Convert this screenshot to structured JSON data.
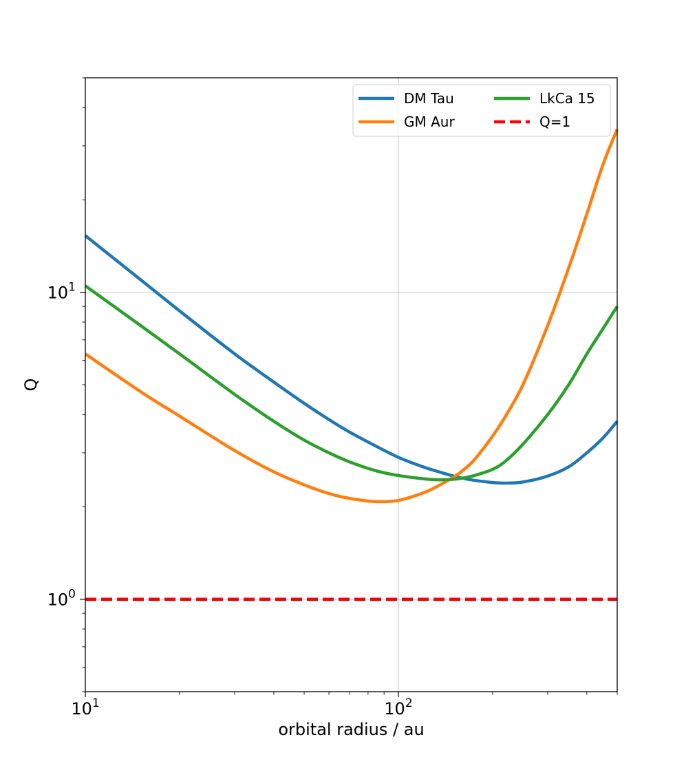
{
  "chart_data": {
    "type": "line",
    "title": "",
    "xlabel": "orbital radius / au",
    "ylabel": "Q",
    "xscale": "log",
    "yscale": "log",
    "xlim": [
      10,
      500
    ],
    "ylim": [
      0.5,
      50
    ],
    "grid": true,
    "legend_position": "top-right",
    "x_major_ticks": [
      {
        "value": 10,
        "base": "10",
        "exp": "1"
      },
      {
        "value": 100,
        "base": "10",
        "exp": "2"
      }
    ],
    "y_major_ticks": [
      {
        "value": 1,
        "base": "10",
        "exp": "0"
      },
      {
        "value": 10,
        "base": "10",
        "exp": "1"
      }
    ],
    "x": [
      10,
      15,
      20,
      30,
      40,
      50,
      60,
      70,
      85,
      100,
      120,
      135,
      150,
      160,
      175,
      200,
      220,
      250,
      300,
      350,
      400,
      450,
      500
    ],
    "series": [
      {
        "name": "DM Tau",
        "color": "#1f77b4",
        "values": [
          15.3,
          11.0,
          8.7,
          6.3,
          5.1,
          4.35,
          3.85,
          3.5,
          3.15,
          2.9,
          2.7,
          2.6,
          2.52,
          2.48,
          2.44,
          2.4,
          2.39,
          2.41,
          2.52,
          2.7,
          3.0,
          3.35,
          3.8
        ]
      },
      {
        "name": "GM Aur",
        "color": "#ff7f0e",
        "values": [
          6.3,
          4.75,
          3.95,
          3.05,
          2.6,
          2.36,
          2.21,
          2.13,
          2.08,
          2.1,
          2.22,
          2.35,
          2.5,
          2.62,
          2.85,
          3.4,
          3.95,
          5.0,
          7.8,
          12.0,
          18.0,
          26.0,
          34.0
        ]
      },
      {
        "name": "LkCa 15",
        "color": "#2ca02c",
        "values": [
          10.5,
          7.8,
          6.3,
          4.65,
          3.8,
          3.3,
          3.0,
          2.8,
          2.62,
          2.53,
          2.47,
          2.45,
          2.46,
          2.48,
          2.53,
          2.65,
          2.82,
          3.2,
          4.0,
          5.0,
          6.3,
          7.6,
          9.0
        ]
      }
    ],
    "reference_lines": [
      {
        "name": "Q=1",
        "y": 1,
        "color": "#ff0000",
        "style": "dashed"
      }
    ]
  }
}
